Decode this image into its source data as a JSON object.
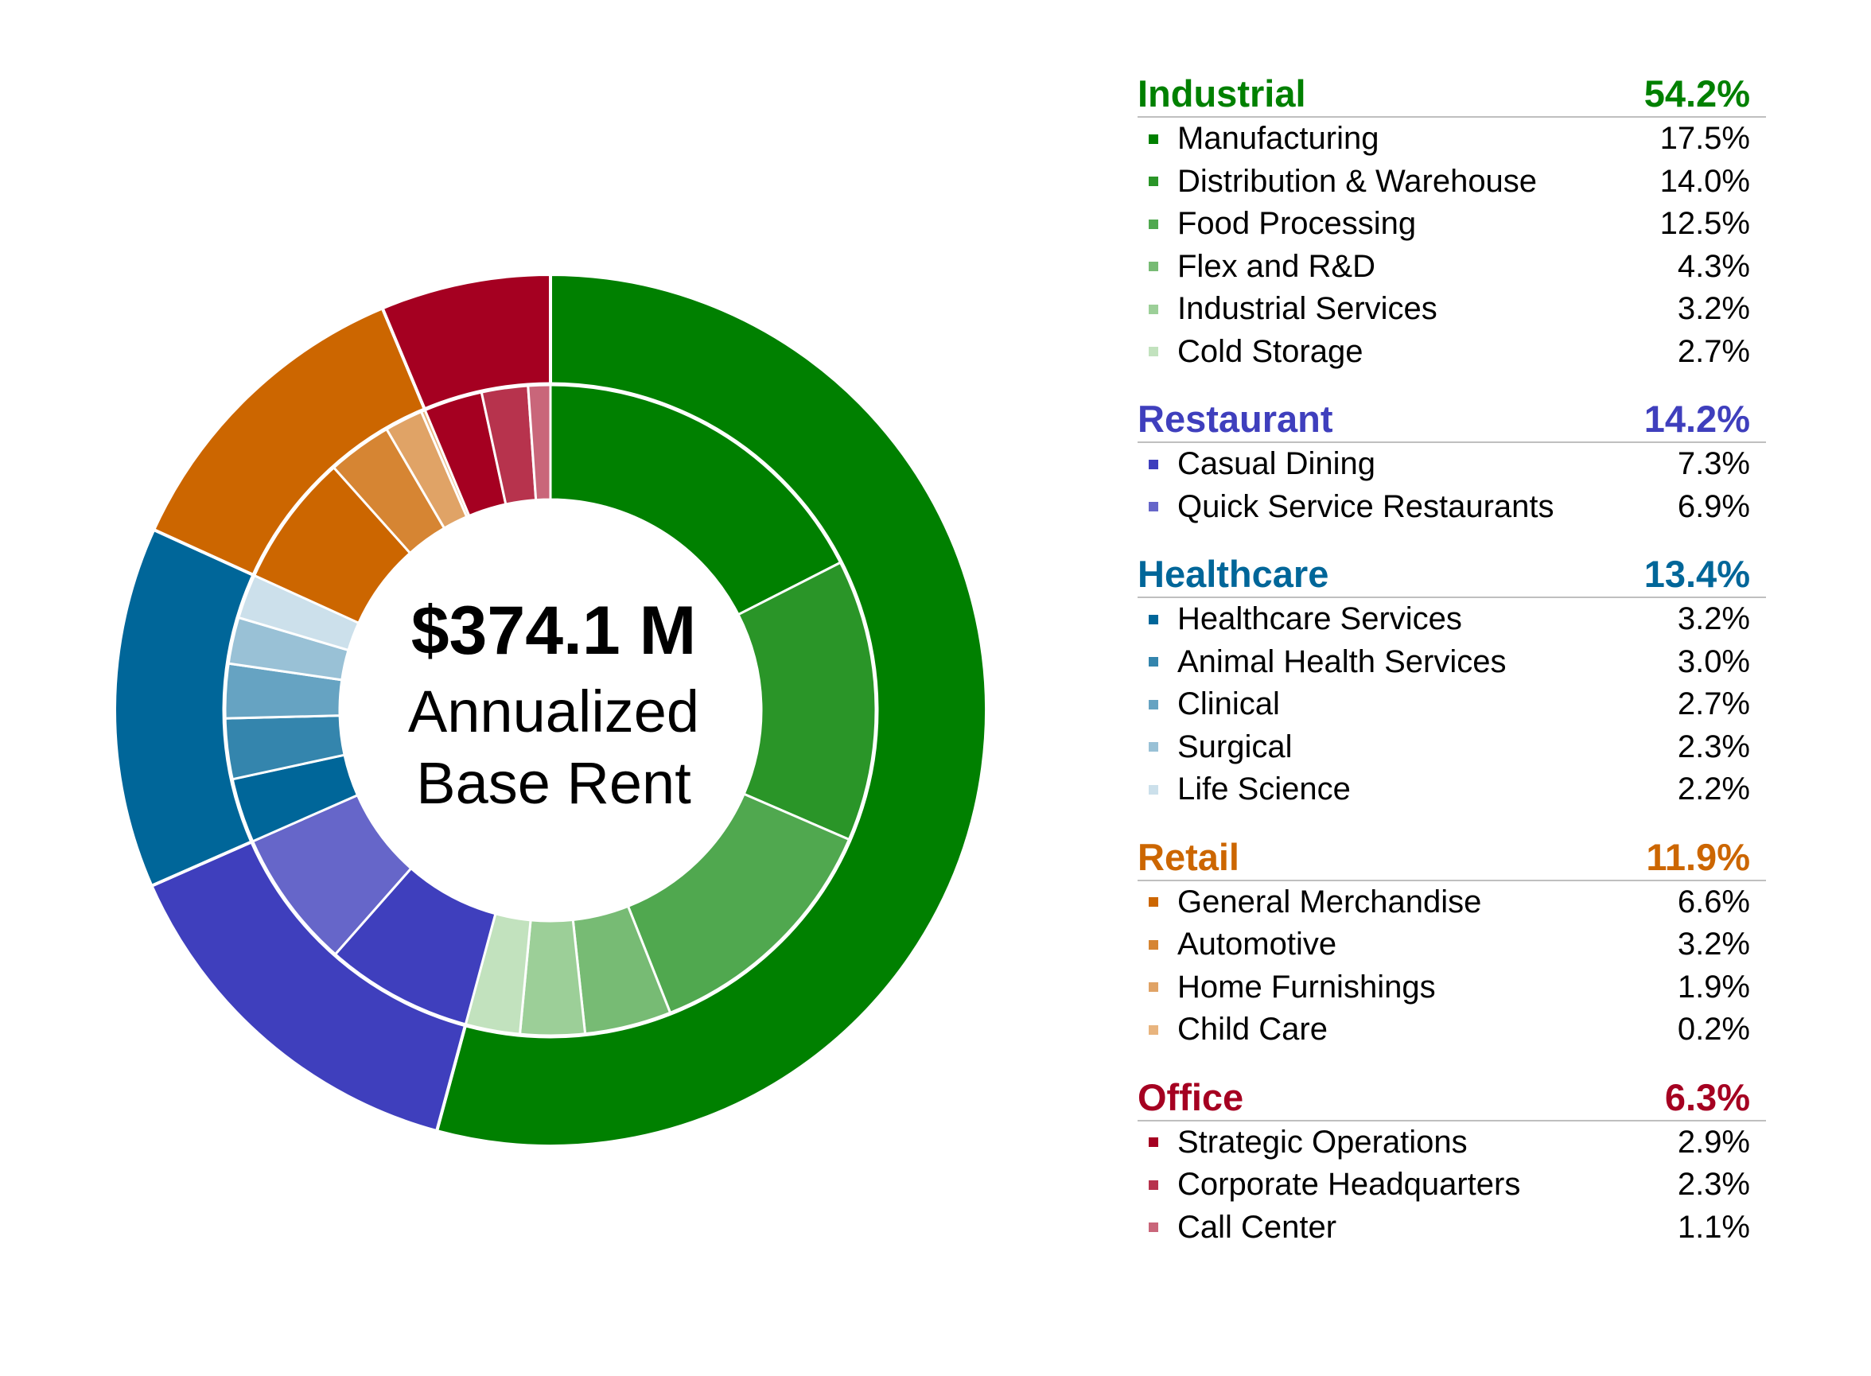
{
  "chart_data": {
    "type": "pie",
    "center_text": {
      "amount": "$374.1 M",
      "line1": "Annualized",
      "line2": "Base Rent"
    },
    "groups": [
      {
        "name": "Industrial",
        "value": 54.2,
        "label": "54.2%",
        "color": "#008000",
        "items": [
          {
            "name": "Manufacturing",
            "value": 17.5,
            "label": "17.5%",
            "color": "#008000"
          },
          {
            "name": "Distribution & Warehouse",
            "value": 14.0,
            "label": "14.0%",
            "color": "#2a9528"
          },
          {
            "name": "Food Processing",
            "value": 12.5,
            "label": "12.5%",
            "color": "#50a84f"
          },
          {
            "name": "Flex and R&D",
            "value": 4.3,
            "label": "4.3%",
            "color": "#77bb74"
          },
          {
            "name": "Industrial Services",
            "value": 3.2,
            "label": "3.2%",
            "color": "#9ccf98"
          },
          {
            "name": "Cold Storage",
            "value": 2.7,
            "label": "2.7%",
            "color": "#c2e2be"
          }
        ]
      },
      {
        "name": "Restaurant",
        "value": 14.2,
        "label": "14.2%",
        "color": "#3f3fbd",
        "items": [
          {
            "name": "Casual Dining",
            "value": 7.3,
            "label": "7.3%",
            "color": "#3f3fbd"
          },
          {
            "name": "Quick Service Restaurants",
            "value": 6.9,
            "label": "6.9%",
            "color": "#6666c9"
          }
        ]
      },
      {
        "name": "Healthcare",
        "value": 13.4,
        "label": "13.4%",
        "color": "#006699",
        "items": [
          {
            "name": "Healthcare Services",
            "value": 3.2,
            "label": "3.2%",
            "color": "#006699"
          },
          {
            "name": "Animal Health Services",
            "value": 3.0,
            "label": "3.0%",
            "color": "#3485ad"
          },
          {
            "name": "Clinical",
            "value": 2.7,
            "label": "2.7%",
            "color": "#66a3c2"
          },
          {
            "name": "Surgical",
            "value": 2.3,
            "label": "2.3%",
            "color": "#99c1d6"
          },
          {
            "name": "Life Science",
            "value": 2.2,
            "label": "2.2%",
            "color": "#cce0eb"
          }
        ]
      },
      {
        "name": "Retail",
        "value": 11.9,
        "label": "11.9%",
        "color": "#cc6600",
        "items": [
          {
            "name": "General Merchandise",
            "value": 6.6,
            "label": "6.6%",
            "color": "#cc6600"
          },
          {
            "name": "Automotive",
            "value": 3.2,
            "label": "3.2%",
            "color": "#d68533"
          },
          {
            "name": "Home Furnishings",
            "value": 1.9,
            "label": "1.9%",
            "color": "#e0a366"
          },
          {
            "name": "Child Care",
            "value": 0.2,
            "label": "0.2%",
            "color": "#e8b47e"
          }
        ]
      },
      {
        "name": "Office",
        "value": 6.3,
        "label": "6.3%",
        "color": "#a50021",
        "items": [
          {
            "name": "Strategic Operations",
            "value": 2.9,
            "label": "2.9%",
            "color": "#a50021"
          },
          {
            "name": "Corporate Headquarters",
            "value": 2.3,
            "label": "2.3%",
            "color": "#b7334d"
          },
          {
            "name": "Call Center",
            "value": 1.1,
            "label": "1.1%",
            "color": "#c9667a"
          }
        ]
      }
    ]
  }
}
